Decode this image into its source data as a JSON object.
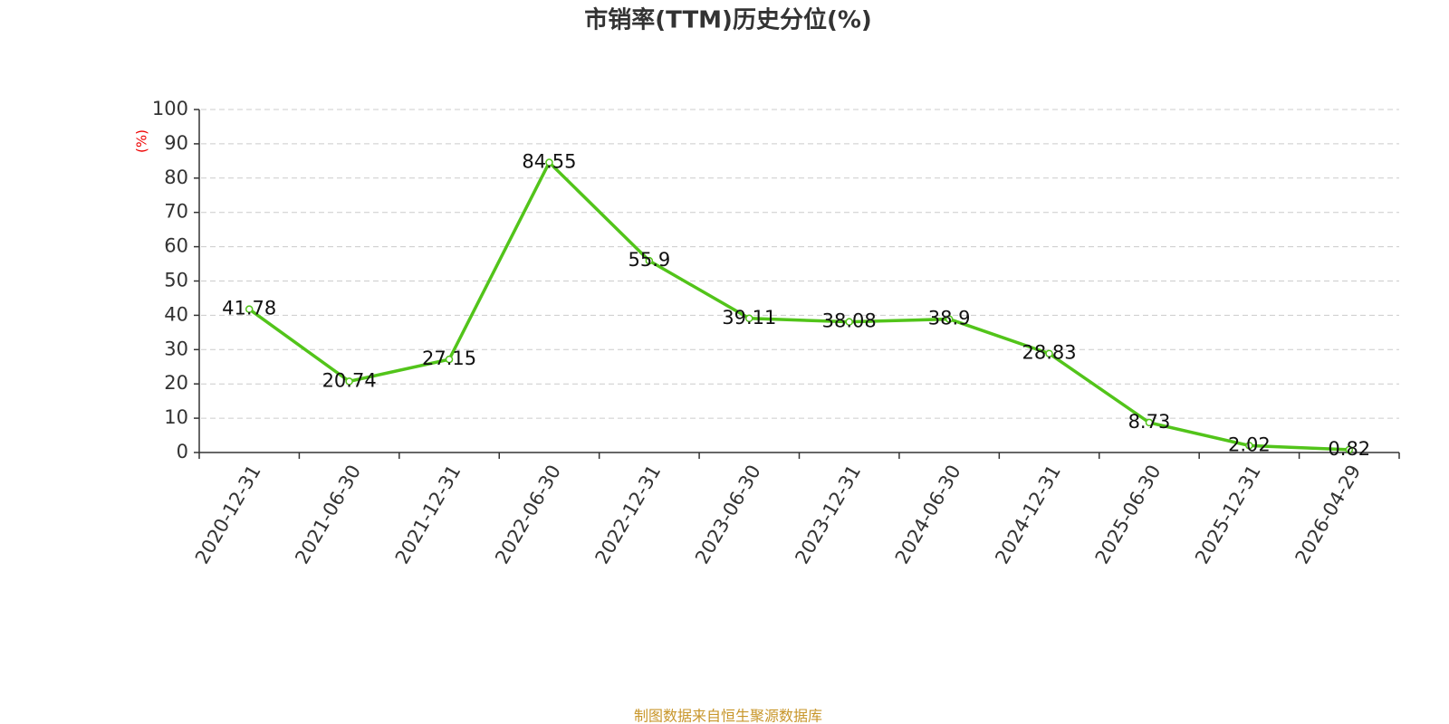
{
  "chart_data": {
    "type": "line",
    "title": "市销率(TTM)历史分位(%)",
    "y_label": "(%)",
    "source": "制图数据来自恒生聚源数据库",
    "categories": [
      "2020-12-31",
      "2021-06-30",
      "2021-12-31",
      "2022-06-30",
      "2022-12-31",
      "2023-06-30",
      "2023-12-31",
      "2024-06-30",
      "2024-12-31",
      "2025-06-30",
      "2025-12-31",
      "2026-04-29"
    ],
    "values": [
      41.78,
      20.74,
      27.15,
      84.55,
      55.9,
      39.11,
      38.08,
      38.9,
      28.83,
      8.73,
      2.02,
      0.82
    ],
    "color": "#52c41a",
    "ylim": [
      0,
      100
    ],
    "yticks": [
      0,
      10,
      20,
      30,
      40,
      50,
      60,
      70,
      80,
      90,
      100
    ],
    "grid": true
  }
}
